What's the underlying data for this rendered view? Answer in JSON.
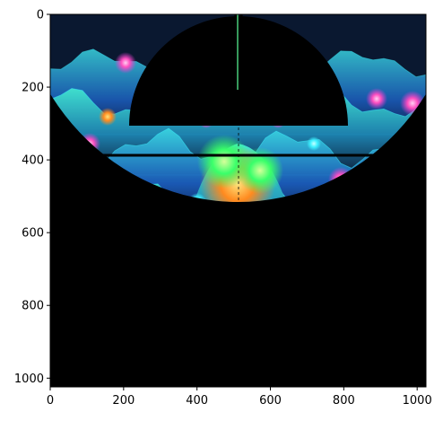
{
  "figure": {
    "x_ticks": [
      "0",
      "200",
      "400",
      "600",
      "800",
      "1000"
    ],
    "y_ticks": [
      "0",
      "200",
      "400",
      "600",
      "800",
      "1000"
    ]
  },
  "image": {
    "subject": "fluorescent-microscopy-style landscape of glowing cells inside circular scope view with crosshair overlay",
    "colors": {
      "background_dark": "#06101c",
      "teal": "#1fd6d0",
      "cyan": "#3cf0ff",
      "blue": "#2a5bd8",
      "magenta": "#e23ad8",
      "pink": "#ff4fc0",
      "orange": "#ff8a1f",
      "yellow": "#ffd23a",
      "green": "#39ff6a",
      "purple": "#7a2fd0"
    }
  }
}
